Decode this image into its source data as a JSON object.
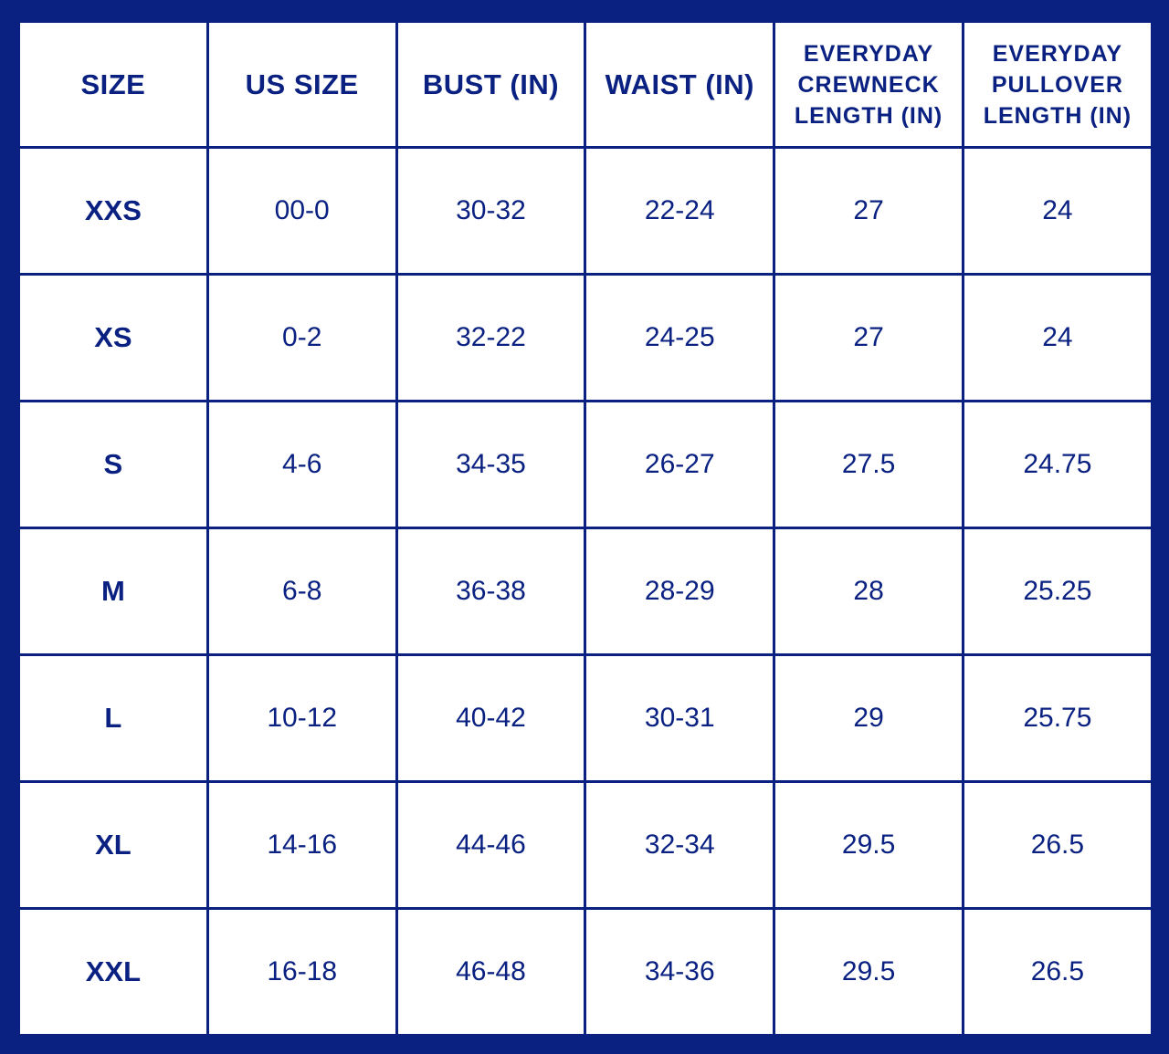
{
  "chart_data": {
    "type": "table",
    "columns": [
      "SIZE",
      "US SIZE",
      "BUST (IN)",
      "WAIST (IN)",
      "EVERYDAY\nCREWNECK\nLENGTH (IN)",
      "EVERYDAY\nPULLOVER\nLENGTH (IN)"
    ],
    "rows": [
      [
        "XXS",
        "00-0",
        "30-32",
        "22-24",
        "27",
        "24"
      ],
      [
        "XS",
        "0-2",
        "32-22",
        "24-25",
        "27",
        "24"
      ],
      [
        "S",
        "4-6",
        "34-35",
        "26-27",
        "27.5",
        "24.75"
      ],
      [
        "M",
        "6-8",
        "36-38",
        "28-29",
        "28",
        "25.25"
      ],
      [
        "L",
        "10-12",
        "40-42",
        "30-31",
        "29",
        "25.75"
      ],
      [
        "XL",
        "14-16",
        "44-46",
        "32-34",
        "29.5",
        "26.5"
      ],
      [
        "XXL",
        "16-18",
        "46-48",
        "34-36",
        "29.5",
        "26.5"
      ]
    ]
  },
  "colors": {
    "border": "#0a2182",
    "text": "#0a2182",
    "cell_background": "#ffffff"
  }
}
